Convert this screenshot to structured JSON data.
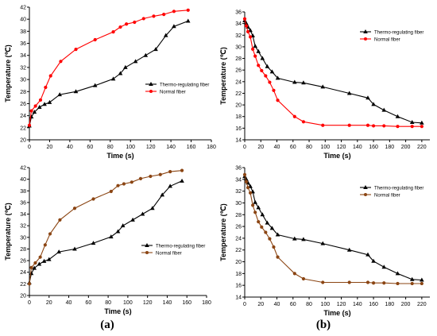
{
  "figure": {
    "caption_a": "(a)",
    "caption_b": "(b)"
  },
  "chart_data": [
    {
      "type": "line",
      "xlabel": "Time (s)",
      "ylabel": "Temperature (℃)",
      "xlim": [
        0,
        180
      ],
      "ylim": [
        20,
        42
      ],
      "xticks": [
        0,
        20,
        40,
        60,
        80,
        100,
        120,
        140,
        160,
        180
      ],
      "yticks": [
        20,
        22,
        24,
        26,
        28,
        30,
        32,
        34,
        36,
        38,
        40,
        42
      ],
      "legend_position": "center-right",
      "series": [
        {
          "name": "Thermo-regulating fiber",
          "color": "#000000",
          "marker": "triangle",
          "x": [
            0,
            2,
            5,
            10,
            15,
            20,
            30,
            46,
            65,
            83,
            90,
            95,
            105,
            115,
            125,
            135,
            143,
            157
          ],
          "y": [
            22.3,
            23.8,
            24.6,
            25.4,
            25.9,
            26.2,
            27.5,
            28.0,
            29.0,
            30.1,
            31.0,
            32.0,
            33.0,
            34.0,
            35.0,
            37.3,
            38.8,
            39.7
          ]
        },
        {
          "name": "Normal fiber",
          "color": "#ff0000",
          "marker": "circle",
          "x": [
            0,
            2,
            6,
            11,
            16,
            21,
            31,
            46,
            65,
            83,
            90,
            96,
            104,
            113,
            123,
            133,
            143,
            157
          ],
          "y": [
            22.4,
            24.8,
            25.6,
            26.6,
            28.7,
            30.6,
            33.0,
            35.0,
            36.6,
            37.9,
            38.7,
            39.2,
            39.5,
            40.1,
            40.5,
            40.8,
            41.3,
            41.5
          ]
        }
      ]
    },
    {
      "type": "line",
      "xlabel": "Time (s)",
      "ylabel": "Temperature (℃)",
      "xlim": [
        0,
        230
      ],
      "ylim": [
        14,
        36
      ],
      "xticks": [
        0,
        20,
        40,
        60,
        80,
        100,
        120,
        140,
        160,
        180,
        200,
        220
      ],
      "yticks": [
        14,
        16,
        18,
        20,
        22,
        24,
        26,
        28,
        30,
        32,
        34,
        36
      ],
      "legend_position": "top-right",
      "series": [
        {
          "name": "Thermo-regulating fiber",
          "color": "#000000",
          "marker": "triangle",
          "x": [
            0,
            2,
            4,
            7,
            10,
            13,
            17,
            22,
            28,
            34,
            41,
            62,
            73,
            97,
            130,
            153,
            160,
            173,
            190,
            208,
            220
          ],
          "y": [
            34.5,
            34.0,
            33.4,
            32.8,
            31.9,
            30.1,
            29.2,
            28.0,
            26.6,
            25.7,
            24.6,
            23.9,
            23.8,
            23.1,
            22.0,
            21.2,
            20.1,
            19.1,
            18.0,
            17.0,
            16.9
          ]
        },
        {
          "name": "Normal fiber",
          "color": "#ff0000",
          "marker": "circle",
          "x": [
            0,
            2,
            4,
            7,
            10,
            13,
            17,
            21,
            26,
            31,
            36,
            41,
            62,
            73,
            97,
            130,
            153,
            160,
            173,
            190,
            208,
            220
          ],
          "y": [
            34.8,
            33.6,
            32.6,
            31.7,
            29.6,
            28.4,
            26.8,
            25.9,
            25.0,
            23.9,
            22.5,
            20.8,
            18.0,
            17.1,
            16.5,
            16.5,
            16.5,
            16.4,
            16.4,
            16.3,
            16.3,
            16.3
          ]
        }
      ]
    },
    {
      "type": "line",
      "xlabel": "Time (s)",
      "ylabel": "Temperature (℃)",
      "xlim": [
        0,
        180
      ],
      "ylim": [
        20,
        42
      ],
      "xticks": [
        0,
        20,
        40,
        60,
        80,
        100,
        120,
        140,
        160,
        180
      ],
      "yticks": [
        20,
        22,
        24,
        26,
        28,
        30,
        32,
        34,
        36,
        38,
        40,
        42
      ],
      "legend_position": "center-right",
      "series": [
        {
          "name": "Thermo-regulating fiber",
          "color": "#000000",
          "marker": "triangle",
          "x": [
            0,
            2,
            5,
            10,
            15,
            20,
            30,
            46,
            65,
            83,
            90,
            95,
            105,
            115,
            125,
            135,
            143,
            155
          ],
          "y": [
            22.2,
            23.8,
            24.7,
            25.4,
            25.9,
            26.2,
            27.5,
            28.0,
            29.0,
            30.1,
            31.0,
            32.0,
            33.0,
            34.0,
            35.0,
            37.3,
            38.8,
            39.7
          ]
        },
        {
          "name": "Normal fiber",
          "color": "#8b4513",
          "marker": "circle",
          "x": [
            0,
            2,
            6,
            11,
            16,
            21,
            31,
            46,
            65,
            83,
            90,
            96,
            104,
            113,
            123,
            133,
            143,
            155
          ],
          "y": [
            22.0,
            24.8,
            25.6,
            26.6,
            28.7,
            30.6,
            33.0,
            35.0,
            36.6,
            37.9,
            38.9,
            39.2,
            39.5,
            40.1,
            40.5,
            40.8,
            41.3,
            41.5
          ]
        }
      ]
    },
    {
      "type": "line",
      "xlabel": "Time (s)",
      "ylabel": "Temperature (℃)",
      "xlim": [
        0,
        230
      ],
      "ylim": [
        14,
        36
      ],
      "xticks": [
        0,
        20,
        40,
        60,
        80,
        100,
        120,
        140,
        160,
        180,
        200,
        220
      ],
      "yticks": [
        14,
        16,
        18,
        20,
        22,
        24,
        26,
        28,
        30,
        32,
        34,
        36
      ],
      "legend_position": "top-right",
      "series": [
        {
          "name": "Thermo-regulating fiber",
          "color": "#000000",
          "marker": "triangle",
          "x": [
            0,
            2,
            4,
            7,
            10,
            13,
            17,
            22,
            28,
            34,
            41,
            62,
            73,
            97,
            130,
            153,
            160,
            173,
            190,
            208,
            220
          ],
          "y": [
            34.5,
            34.0,
            33.4,
            32.8,
            31.9,
            30.1,
            29.2,
            28.0,
            26.6,
            25.7,
            24.6,
            23.9,
            23.8,
            23.1,
            22.0,
            21.2,
            20.1,
            19.1,
            18.0,
            17.0,
            16.9
          ]
        },
        {
          "name": "Normal fiber",
          "color": "#8b4513",
          "marker": "circle",
          "x": [
            0,
            2,
            4,
            7,
            10,
            13,
            17,
            21,
            26,
            31,
            36,
            41,
            62,
            73,
            97,
            130,
            153,
            160,
            173,
            190,
            208,
            220
          ],
          "y": [
            34.8,
            33.6,
            32.6,
            31.7,
            29.6,
            28.4,
            26.8,
            25.9,
            25.0,
            23.9,
            22.5,
            20.8,
            18.0,
            17.1,
            16.5,
            16.5,
            16.5,
            16.4,
            16.4,
            16.3,
            16.3,
            16.3
          ]
        }
      ]
    }
  ]
}
